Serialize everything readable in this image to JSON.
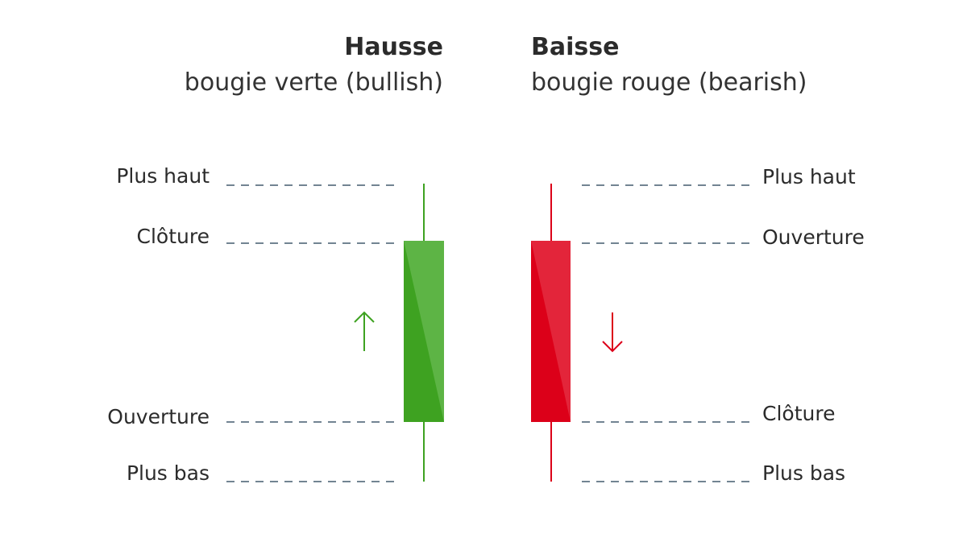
{
  "bullish": {
    "title": "Hausse",
    "subtitle": "bougie verte (bullish)",
    "labels": {
      "high": "Plus haut",
      "close": "Clôture",
      "open": "Ouverture",
      "low": "Plus bas"
    },
    "color_dark": "#3ea221",
    "color_light": "#5db445",
    "arrow": "arrow-up-icon"
  },
  "bearish": {
    "title": "Baisse",
    "subtitle": "bougie rouge (bearish)",
    "labels": {
      "high": "Plus haut",
      "open": "Ouverture",
      "close": "Clôture",
      "low": "Plus bas"
    },
    "color_dark": "#dc0019",
    "color_light": "#e3253a",
    "arrow": "arrow-down-icon"
  },
  "dash_color": "#1f3a52"
}
